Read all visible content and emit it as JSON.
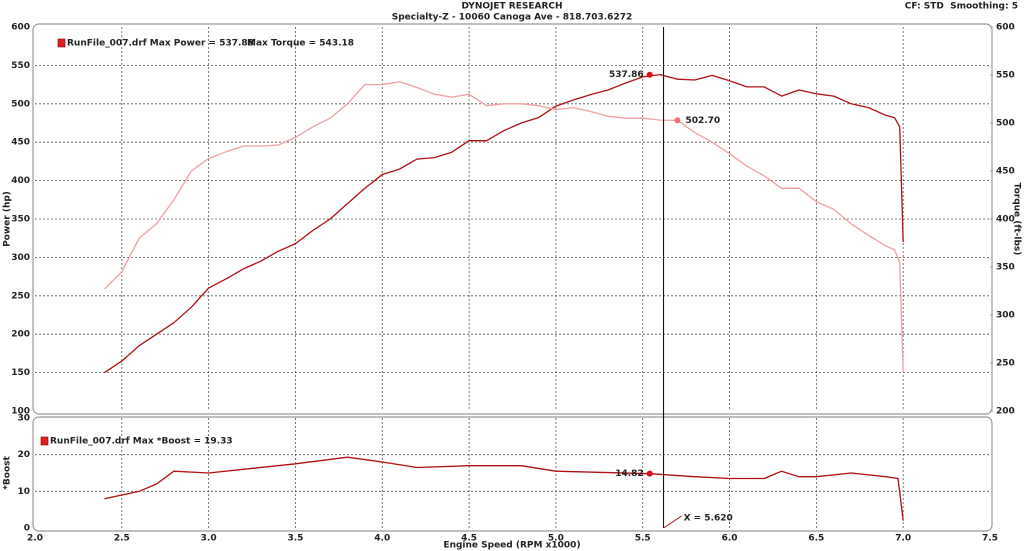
{
  "header": {
    "title": "DYNOJET RESEARCH",
    "subtitle": "Specialty-Z - 10060 Canoga Ave - 818.703.6272",
    "settings": "CF: STD  Smoothing: 5"
  },
  "chart_data": [
    {
      "type": "line",
      "ylabel": "Power (hp)",
      "y2label": "Torque (ft-lbs)",
      "legend": [
        "RunFile_007.drf Max Power = 537.88",
        "Max Torque = 543.18"
      ],
      "xlim": [
        2,
        7.5
      ],
      "ylim": [
        100,
        600
      ],
      "yticks": [
        100,
        150,
        200,
        250,
        300,
        350,
        400,
        450,
        500,
        550,
        600
      ],
      "y2lim": [
        200,
        600
      ],
      "y2ticks": [
        200,
        250,
        300,
        350,
        400,
        450,
        500,
        550,
        600
      ],
      "grid": true,
      "x": [
        2.4,
        2.5,
        2.6,
        2.7,
        2.8,
        2.9,
        3.0,
        3.1,
        3.2,
        3.3,
        3.4,
        3.5,
        3.6,
        3.7,
        3.8,
        3.9,
        4.0,
        4.1,
        4.2,
        4.3,
        4.4,
        4.5,
        4.6,
        4.7,
        4.8,
        4.9,
        5.0,
        5.1,
        5.2,
        5.3,
        5.4,
        5.5,
        5.6,
        5.7,
        5.8,
        5.9,
        6.0,
        6.1,
        6.2,
        6.3,
        6.4,
        6.5,
        6.6,
        6.7,
        6.8,
        6.9,
        6.95,
        6.98,
        7.0
      ],
      "series": [
        {
          "color": "#b01010",
          "axis": "y",
          "values": [
            150,
            165,
            185,
            200,
            215,
            235,
            260,
            272,
            285,
            295,
            308,
            318,
            335,
            350,
            370,
            390,
            408,
            415,
            428,
            430,
            437,
            452,
            452,
            465,
            475,
            482,
            497,
            505,
            512,
            518,
            527,
            535,
            538,
            532,
            531,
            537,
            530,
            522,
            522,
            510,
            518,
            513,
            510,
            500,
            495,
            485,
            482,
            470,
            320
          ]
        },
        {
          "color": "#f0a0a0",
          "axis": "y2",
          "values": [
            327,
            345,
            380,
            395,
            420,
            450,
            463,
            470,
            476,
            476,
            477,
            485,
            496,
            505,
            520,
            540,
            540,
            543,
            537,
            530,
            527,
            530,
            518,
            520,
            520,
            518,
            514,
            516,
            512,
            507,
            505,
            505,
            503,
            502.7,
            490,
            480,
            468,
            455,
            445,
            432,
            432,
            418,
            410,
            395,
            383,
            372,
            368,
            355,
            240
          ]
        }
      ],
      "markers": [
        {
          "x": 5.54,
          "value": 537.86,
          "axis": "y",
          "color": "#e01010"
        },
        {
          "x": 5.7,
          "value": 502.7,
          "value_label": "502.70",
          "axis": "y2",
          "color": "#f07070"
        }
      ]
    },
    {
      "type": "line",
      "ylabel": "*Boost",
      "xlabel": "Engine Speed (RPM x1000)",
      "legend": [
        "RunFile_007.drf Max *Boost = 19.33"
      ],
      "xlim": [
        2,
        7.5
      ],
      "xticks": [
        {
          "value": 2,
          "label": "2.0"
        },
        2.5,
        {
          "value": 3,
          "label": "3.0"
        },
        3.5,
        {
          "value": 4,
          "label": "4.0"
        },
        4.5,
        {
          "value": 5,
          "label": "5.0"
        },
        5.5,
        {
          "value": 6,
          "label": "6.0"
        },
        6.5,
        {
          "value": 7,
          "label": "7.0"
        },
        7.5
      ],
      "ylim": [
        0,
        30
      ],
      "yticks": [
        0,
        10,
        20,
        30
      ],
      "grid": true,
      "x": [
        2.4,
        2.6,
        2.7,
        2.8,
        3.0,
        3.2,
        3.5,
        3.8,
        4.0,
        4.2,
        4.5,
        4.8,
        5.0,
        5.54,
        5.8,
        6.0,
        6.2,
        6.3,
        6.4,
        6.5,
        6.7,
        6.9,
        6.97,
        7.0
      ],
      "series": [
        {
          "color": "#b01010",
          "axis": "y",
          "values": [
            8,
            10,
            12,
            15.5,
            15,
            16,
            17.5,
            19.3,
            18,
            16.5,
            17,
            17,
            15.5,
            14.82,
            14,
            13.5,
            13.5,
            15.5,
            14,
            14,
            15,
            14,
            13.5,
            2
          ]
        }
      ],
      "markers": [
        {
          "x": 5.54,
          "value": 14.82,
          "axis": "y",
          "color": "#e01010"
        }
      ],
      "cursor": {
        "value": 5.62,
        "label": "X = 5.620"
      }
    }
  ]
}
